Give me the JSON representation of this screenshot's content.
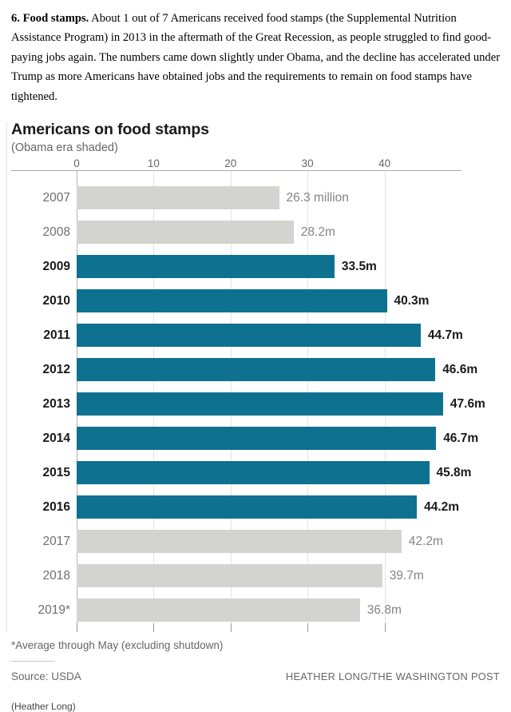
{
  "article": {
    "lead_bold": "6. Food stamps.",
    "paragraph": " About 1 out of 7 Americans received food stamps (the Supplemental Nutrition Assistance Program) in 2013 in the aftermath of the Great Recession, as people struggled to find good-paying jobs again. The numbers came down slightly under Obama, and the decline has accelerated under Trump as more Americans have obtained jobs and the requirements to remain on food stamps have tightened."
  },
  "chart_data": {
    "type": "bar",
    "orientation": "horizontal",
    "title": "Americans on food stamps",
    "subtitle": "(Obama era shaded)",
    "unit": "millions of people",
    "axis_ticks": [
      0,
      10,
      20,
      30,
      40
    ],
    "xlim": [
      0,
      50
    ],
    "grid": true,
    "legend_position": "none",
    "categories": [
      "2007",
      "2008",
      "2009",
      "2010",
      "2011",
      "2012",
      "2013",
      "2014",
      "2015",
      "2016",
      "2017",
      "2018",
      "2019*"
    ],
    "values": [
      26.3,
      28.2,
      33.5,
      40.3,
      44.7,
      46.6,
      47.6,
      46.7,
      45.8,
      44.2,
      42.2,
      39.7,
      36.8
    ],
    "value_labels": [
      "26.3 million",
      "28.2m",
      "33.5m",
      "40.3m",
      "44.7m",
      "46.6m",
      "47.6m",
      "46.7m",
      "45.8m",
      "44.2m",
      "42.2m",
      "39.7m",
      "36.8m"
    ],
    "shaded_obama_era_years": [
      "2009",
      "2010",
      "2011",
      "2012",
      "2013",
      "2014",
      "2015",
      "2016"
    ],
    "colors": {
      "obama_era_bar": "#0f7190",
      "other_bar": "#d3d3d0",
      "highlight_text": "#1a1a1a",
      "muted_text": "#6f6f6f"
    }
  },
  "footnote": "*Average through May (excluding shutdown)",
  "source": "Source: USDA",
  "credit": "HEATHER LONG/THE WASHINGTON POST",
  "caption": "(Heather Long)"
}
